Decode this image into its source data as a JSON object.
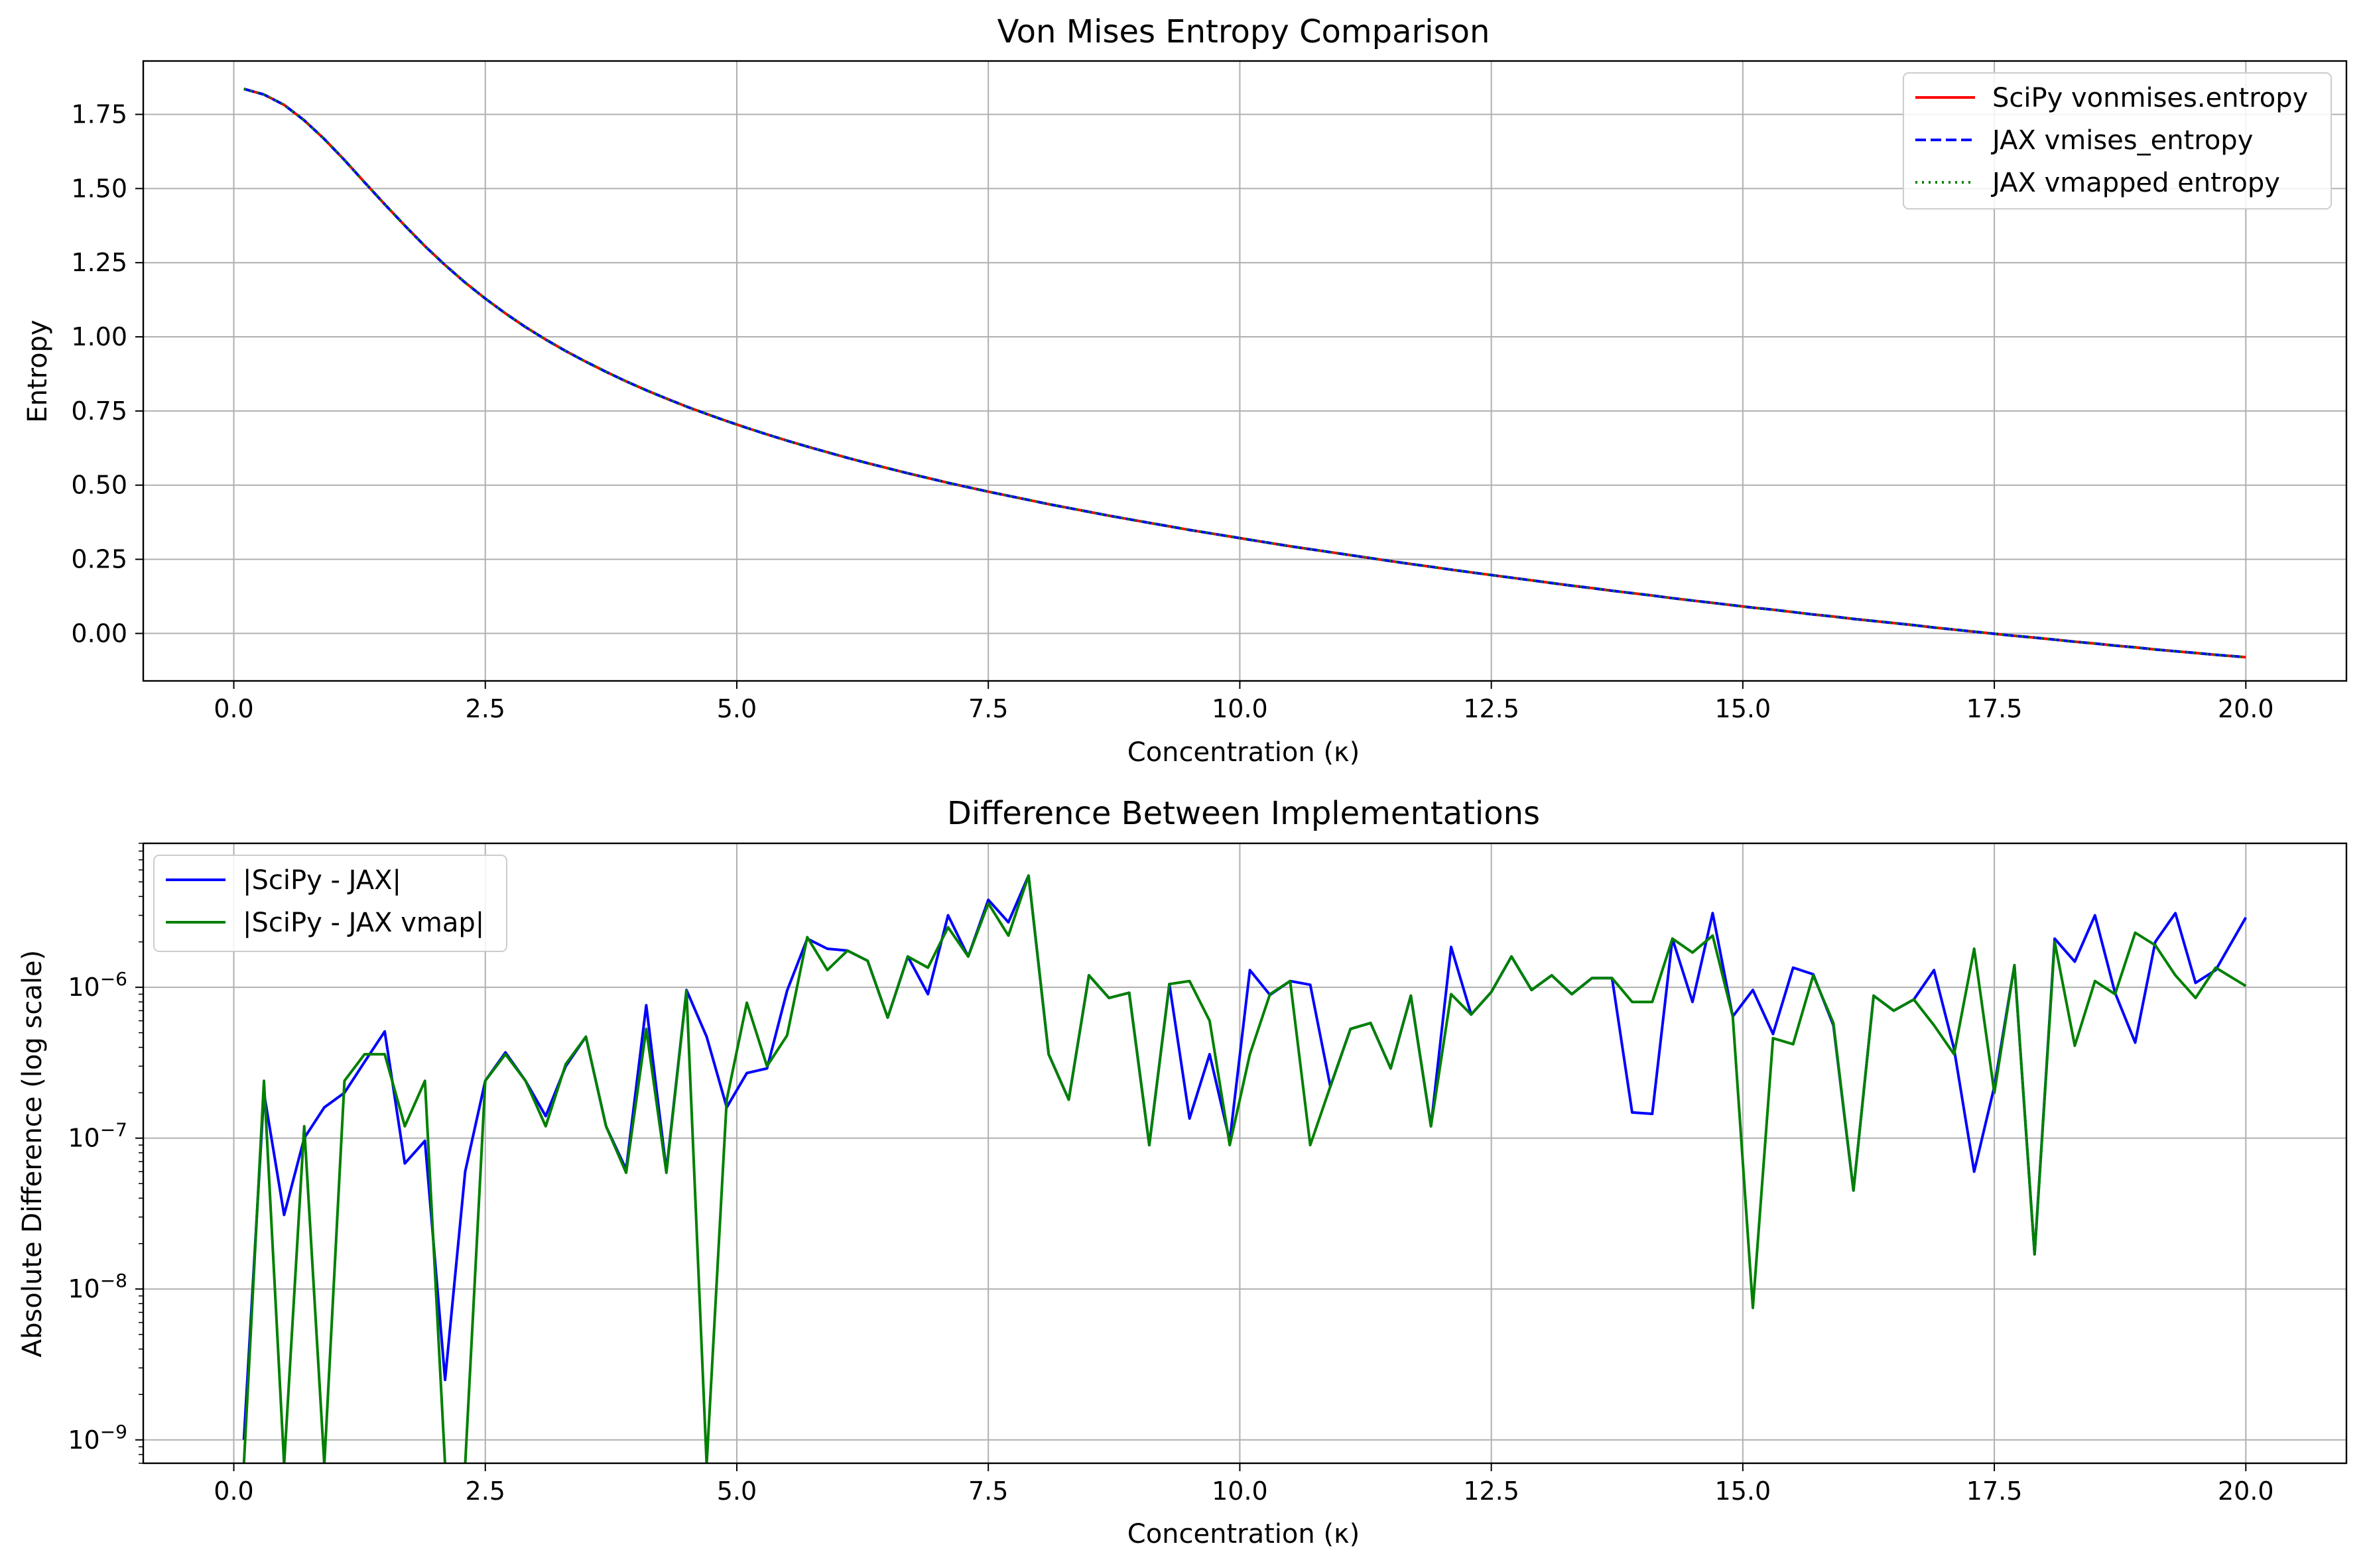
{
  "colors": {
    "scipy": "#ff0000",
    "jax": "#0000ff",
    "jax_vmap": "#008000",
    "grid": "#b0b0b0",
    "axes": "#000000"
  },
  "chart_data": [
    {
      "type": "line",
      "title": "Von Mises Entropy Comparison",
      "xlabel": "Concentration (κ)",
      "ylabel": "Entropy",
      "xlim": [
        -0.9,
        21.0
      ],
      "ylim": [
        -0.16,
        1.93
      ],
      "x_ticks": [
        0,
        2.5,
        5,
        7.5,
        10,
        12.5,
        15,
        17.5,
        20
      ],
      "x_tick_labels": [
        "0.0",
        "2.5",
        "5.0",
        "7.5",
        "10.0",
        "12.5",
        "15.0",
        "17.5",
        "20.0"
      ],
      "y_ticks": [
        0,
        0.25,
        0.5,
        0.75,
        1.0,
        1.25,
        1.5,
        1.75
      ],
      "y_tick_labels": [
        "0.00",
        "0.25",
        "0.50",
        "0.75",
        "1.00",
        "1.25",
        "1.50",
        "1.75"
      ],
      "y_scale": "linear",
      "grid": true,
      "legend_position": "top-right",
      "x": [
        0.1,
        0.3,
        0.5,
        0.7,
        0.9,
        1.1,
        1.3,
        1.5,
        1.7,
        1.9,
        2.1,
        2.3,
        2.5,
        2.7,
        2.9,
        3.1,
        3.3,
        3.5,
        3.7,
        3.9,
        4.1,
        4.3,
        4.5,
        4.7,
        4.9,
        5.1,
        5.3,
        5.5,
        5.7,
        5.9,
        6.1,
        6.3,
        6.5,
        6.7,
        6.9,
        7.1,
        7.3,
        7.5,
        7.7,
        7.9,
        8.1,
        8.3,
        8.5,
        8.7,
        8.9,
        9.1,
        9.3,
        9.5,
        9.7,
        9.9,
        10.1,
        10.3,
        10.5,
        10.7,
        10.9,
        11.1,
        11.3,
        11.5,
        11.7,
        11.9,
        12.1,
        12.3,
        12.5,
        12.7,
        12.9,
        13.1,
        13.3,
        13.5,
        13.7,
        13.9,
        14.1,
        14.3,
        14.5,
        14.7,
        14.9,
        15.1,
        15.3,
        15.5,
        15.7,
        15.9,
        16.1,
        16.3,
        16.5,
        16.7,
        16.9,
        17.1,
        17.3,
        17.5,
        17.7,
        17.9,
        18.1,
        18.3,
        18.5,
        18.7,
        18.9,
        19.1,
        19.3,
        19.5,
        19.7,
        20.0
      ],
      "series": [
        {
          "name": "SciPy vonmises.entropy",
          "color": "#ff0000",
          "style": "solid",
          "values": [
            1.836,
            1.817,
            1.782,
            1.73,
            1.667,
            1.596,
            1.521,
            1.447,
            1.375,
            1.306,
            1.242,
            1.183,
            1.129,
            1.079,
            1.033,
            0.991,
            0.952,
            0.916,
            0.882,
            0.85,
            0.82,
            0.792,
            0.765,
            0.74,
            0.716,
            0.693,
            0.671,
            0.65,
            0.63,
            0.611,
            0.592,
            0.574,
            0.557,
            0.54,
            0.524,
            0.508,
            0.493,
            0.478,
            0.464,
            0.45,
            0.436,
            0.423,
            0.41,
            0.397,
            0.385,
            0.373,
            0.361,
            0.349,
            0.338,
            0.327,
            0.316,
            0.305,
            0.294,
            0.284,
            0.274,
            0.264,
            0.254,
            0.244,
            0.234,
            0.225,
            0.215,
            0.206,
            0.197,
            0.188,
            0.179,
            0.17,
            0.161,
            0.153,
            0.144,
            0.136,
            0.128,
            0.119,
            0.111,
            0.103,
            0.095,
            0.087,
            0.08,
            0.072,
            0.064,
            0.057,
            0.049,
            0.042,
            0.035,
            0.028,
            0.02,
            0.013,
            0.006,
            -0.001,
            -0.008,
            -0.014,
            -0.021,
            -0.028,
            -0.034,
            -0.041,
            -0.047,
            -0.054,
            -0.06,
            -0.066,
            -0.072,
            -0.08
          ]
        },
        {
          "name": "JAX vmises_entropy",
          "color": "#0000ff",
          "style": "dashed",
          "values": [
            1.836,
            1.817,
            1.782,
            1.73,
            1.667,
            1.596,
            1.521,
            1.447,
            1.375,
            1.306,
            1.242,
            1.183,
            1.129,
            1.079,
            1.033,
            0.991,
            0.952,
            0.916,
            0.882,
            0.85,
            0.82,
            0.792,
            0.765,
            0.74,
            0.716,
            0.693,
            0.671,
            0.65,
            0.63,
            0.611,
            0.592,
            0.574,
            0.557,
            0.54,
            0.524,
            0.508,
            0.493,
            0.478,
            0.464,
            0.45,
            0.436,
            0.423,
            0.41,
            0.397,
            0.385,
            0.373,
            0.361,
            0.349,
            0.338,
            0.327,
            0.316,
            0.305,
            0.294,
            0.284,
            0.274,
            0.264,
            0.254,
            0.244,
            0.234,
            0.225,
            0.215,
            0.206,
            0.197,
            0.188,
            0.179,
            0.17,
            0.161,
            0.153,
            0.144,
            0.136,
            0.128,
            0.119,
            0.111,
            0.103,
            0.095,
            0.087,
            0.08,
            0.072,
            0.064,
            0.057,
            0.049,
            0.042,
            0.035,
            0.028,
            0.02,
            0.013,
            0.006,
            -0.001,
            -0.008,
            -0.014,
            -0.021,
            -0.028,
            -0.034,
            -0.041,
            -0.047,
            -0.054,
            -0.06,
            -0.066,
            -0.072,
            -0.08
          ]
        },
        {
          "name": "JAX vmapped entropy",
          "color": "#008000",
          "style": "dotted",
          "values": [
            1.836,
            1.817,
            1.782,
            1.73,
            1.667,
            1.596,
            1.521,
            1.447,
            1.375,
            1.306,
            1.242,
            1.183,
            1.129,
            1.079,
            1.033,
            0.991,
            0.952,
            0.916,
            0.882,
            0.85,
            0.82,
            0.792,
            0.765,
            0.74,
            0.716,
            0.693,
            0.671,
            0.65,
            0.63,
            0.611,
            0.592,
            0.574,
            0.557,
            0.54,
            0.524,
            0.508,
            0.493,
            0.478,
            0.464,
            0.45,
            0.436,
            0.423,
            0.41,
            0.397,
            0.385,
            0.373,
            0.361,
            0.349,
            0.338,
            0.327,
            0.316,
            0.305,
            0.294,
            0.284,
            0.274,
            0.264,
            0.254,
            0.244,
            0.234,
            0.225,
            0.215,
            0.206,
            0.197,
            0.188,
            0.179,
            0.17,
            0.161,
            0.153,
            0.144,
            0.136,
            0.128,
            0.119,
            0.111,
            0.103,
            0.095,
            0.087,
            0.08,
            0.072,
            0.064,
            0.057,
            0.049,
            0.042,
            0.035,
            0.028,
            0.02,
            0.013,
            0.006,
            -0.001,
            -0.008,
            -0.014,
            -0.021,
            -0.028,
            -0.034,
            -0.041,
            -0.047,
            -0.054,
            -0.06,
            -0.066,
            -0.072,
            -0.08
          ]
        }
      ]
    },
    {
      "type": "line",
      "title": "Difference Between Implementations",
      "xlabel": "Concentration (κ)",
      "ylabel": "Absolute Difference (log scale)",
      "xlim": [
        -0.9,
        21.0
      ],
      "ylim": [
        7e-10,
        9e-06
      ],
      "y_scale": "log",
      "x_ticks": [
        0,
        2.5,
        5,
        7.5,
        10,
        12.5,
        15,
        17.5,
        20
      ],
      "x_tick_labels": [
        "0.0",
        "2.5",
        "5.0",
        "7.5",
        "10.0",
        "12.5",
        "15.0",
        "17.5",
        "20.0"
      ],
      "y_ticks": [
        1e-09,
        1e-08,
        1e-07,
        1e-06
      ],
      "y_tick_labels": [
        {
          "base": "10",
          "exp": "−9"
        },
        {
          "base": "10",
          "exp": "−8"
        },
        {
          "base": "10",
          "exp": "−7"
        },
        {
          "base": "10",
          "exp": "−6"
        }
      ],
      "grid": true,
      "legend_position": "top-left",
      "x": [
        0.1,
        0.3,
        0.5,
        0.7,
        0.9,
        1.1,
        1.3,
        1.5,
        1.7,
        1.9,
        2.1,
        2.3,
        2.5,
        2.7,
        2.9,
        3.1,
        3.3,
        3.5,
        3.7,
        3.9,
        4.1,
        4.3,
        4.5,
        4.7,
        4.9,
        5.1,
        5.3,
        5.5,
        5.7,
        5.9,
        6.1,
        6.3,
        6.5,
        6.7,
        6.9,
        7.1,
        7.3,
        7.5,
        7.7,
        7.9,
        8.1,
        8.3,
        8.5,
        8.7,
        8.9,
        9.1,
        9.3,
        9.5,
        9.7,
        9.9,
        10.1,
        10.3,
        10.5,
        10.7,
        10.9,
        11.1,
        11.3,
        11.5,
        11.7,
        11.9,
        12.1,
        12.3,
        12.5,
        12.7,
        12.9,
        13.1,
        13.3,
        13.5,
        13.7,
        13.9,
        14.1,
        14.3,
        14.5,
        14.7,
        14.9,
        15.1,
        15.3,
        15.5,
        15.7,
        15.9,
        16.1,
        16.3,
        16.5,
        16.7,
        16.9,
        17.1,
        17.3,
        17.5,
        17.7,
        17.9,
        18.1,
        18.3,
        18.5,
        18.7,
        18.9,
        19.1,
        19.3,
        19.5,
        19.7,
        20.0
      ],
      "series": [
        {
          "name": "|SciPy - JAX|",
          "color": "#0000ff",
          "values": [
            1e-09,
            2e-07,
            3.1e-08,
            1e-07,
            1.6e-07,
            2e-07,
            3.2e-07,
            5.1e-07,
            6.8e-08,
            9.6e-08,
            2.5e-09,
            6e-08,
            2.4e-07,
            3.7e-07,
            2.4e-07,
            1.4e-07,
            3e-07,
            4.7e-07,
            1.2e-07,
            6.2e-08,
            7.6e-07,
            6.1e-08,
            9.6e-07,
            4.7e-07,
            1.6e-07,
            2.7e-07,
            2.9e-07,
            9.5e-07,
            2.1e-06,
            1.8e-06,
            1.75e-06,
            1.5e-06,
            6.3e-07,
            1.6e-06,
            9e-07,
            3e-06,
            1.6e-06,
            3.8e-06,
            2.7e-06,
            5.5e-06,
            3.6e-07,
            1.8e-07,
            1.2e-06,
            8.5e-07,
            9.2e-07,
            9e-08,
            1.05e-06,
            1.35e-07,
            3.6e-07,
            9.6e-08,
            1.3e-06,
            8.9e-07,
            1.1e-06,
            1.04e-06,
            2.2e-07,
            5.3e-07,
            5.8e-07,
            2.9e-07,
            8.8e-07,
            1.2e-07,
            1.85e-06,
            6.6e-07,
            9.3e-07,
            1.6e-06,
            9.6e-07,
            1.2e-06,
            9e-07,
            1.15e-06,
            1.15e-06,
            1.48e-07,
            1.45e-07,
            2.1e-06,
            8e-07,
            3.1e-06,
            6.4e-07,
            9.6e-07,
            4.9e-07,
            1.35e-06,
            1.22e-06,
            5.6e-07,
            4.5e-08,
            8.8e-07,
            7e-07,
            8.3e-07,
            1.3e-06,
            3.9e-07,
            6e-08,
            2.2e-07,
            1.4e-06,
            1.7e-08,
            2.1e-06,
            1.48e-06,
            3e-06,
            9.2e-07,
            4.3e-07,
            2e-06,
            3.1e-06,
            1.07e-06,
            1.3e-06,
            2.9e-06
          ]
        },
        {
          "name": "|SciPy - JAX vmap|",
          "color": "#008000",
          "values": [
            null,
            2.4e-07,
            null,
            1.2e-07,
            null,
            2.4e-07,
            3.6e-07,
            3.6e-07,
            1.2e-07,
            2.4e-07,
            null,
            null,
            2.4e-07,
            3.6e-07,
            2.4e-07,
            1.2e-07,
            3.1e-07,
            4.7e-07,
            1.2e-07,
            5.9e-08,
            5.3e-07,
            5.9e-08,
            9.5e-07,
            null,
            1.8e-07,
            7.9e-07,
            3e-07,
            4.8e-07,
            2.15e-06,
            1.3e-06,
            1.75e-06,
            1.5e-06,
            6.3e-07,
            1.6e-06,
            1.35e-06,
            2.5e-06,
            1.6e-06,
            3.6e-06,
            2.2e-06,
            5.5e-06,
            3.6e-07,
            1.8e-07,
            1.2e-06,
            8.5e-07,
            9.2e-07,
            9e-08,
            1.05e-06,
            1.1e-06,
            6e-07,
            9e-08,
            3.6e-07,
            9e-07,
            1.1e-06,
            9e-08,
            2.2e-07,
            5.3e-07,
            5.8e-07,
            2.9e-07,
            8.8e-07,
            1.2e-07,
            9e-07,
            6.6e-07,
            9.3e-07,
            1.6e-06,
            9.6e-07,
            1.2e-06,
            9e-07,
            1.15e-06,
            1.15e-06,
            8e-07,
            8e-07,
            2.1e-06,
            1.7e-06,
            2.2e-06,
            6.4e-07,
            7.5e-09,
            4.6e-07,
            4.2e-07,
            1.2e-06,
            5.8e-07,
            4.5e-08,
            8.8e-07,
            7e-07,
            8.3e-07,
            5.6e-07,
            3.6e-07,
            1.8e-06,
            2e-07,
            1.4e-06,
            1.7e-08,
            2e-06,
            4.1e-07,
            1.1e-06,
            9e-07,
            2.3e-06,
            1.9e-06,
            1.2e-06,
            8.5e-07,
            1.35e-06,
            1.02e-06
          ]
        }
      ],
      "drop_to_bottom_x": [
        0.3,
        0.7,
        1.1,
        1.9,
        2.5,
        4.5,
        4.9
      ]
    }
  ]
}
